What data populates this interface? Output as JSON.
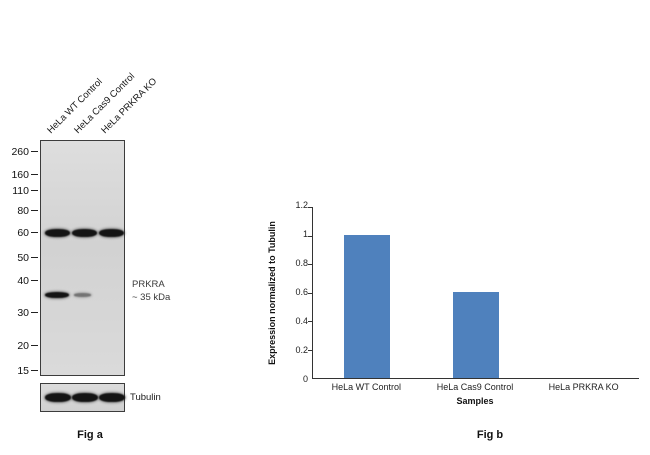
{
  "fig_a": {
    "caption": "Fig a",
    "lane_labels": [
      "HeLa WT Control",
      "HeLa Cas9 Control",
      "HeLa PRKRA KO"
    ],
    "mw_markers": [
      "260",
      "160",
      "110",
      "80",
      "60",
      "50",
      "40",
      "30",
      "20",
      "15"
    ],
    "annotation": {
      "protein": "PRKRA",
      "size": "~ 35 kDa"
    },
    "loading_control_label": "Tubulin",
    "bands": {
      "kda60": [
        "strong",
        "strong",
        "strong"
      ],
      "prkra_35kda": [
        "strong",
        "weak",
        "absent"
      ],
      "tubulin": [
        "strong",
        "strong",
        "strong"
      ]
    }
  },
  "fig_b": {
    "caption": "Fig b"
  },
  "chart_data": {
    "type": "bar",
    "categories": [
      "HeLa WT Control",
      "HeLa Cas9 Control",
      "HeLa PRKRA KO"
    ],
    "values": [
      1.0,
      0.6,
      0
    ],
    "title": "",
    "xlabel": "Samples",
    "ylabel": "Expression  normalized to Tubulin",
    "ylim": [
      0,
      1.2
    ],
    "yticks": [
      "1.2",
      "1",
      "0.8",
      "0.6",
      "0.4",
      "0.2",
      "0"
    ],
    "bar_color": "#4f81bd",
    "grid": false,
    "legend": false
  }
}
